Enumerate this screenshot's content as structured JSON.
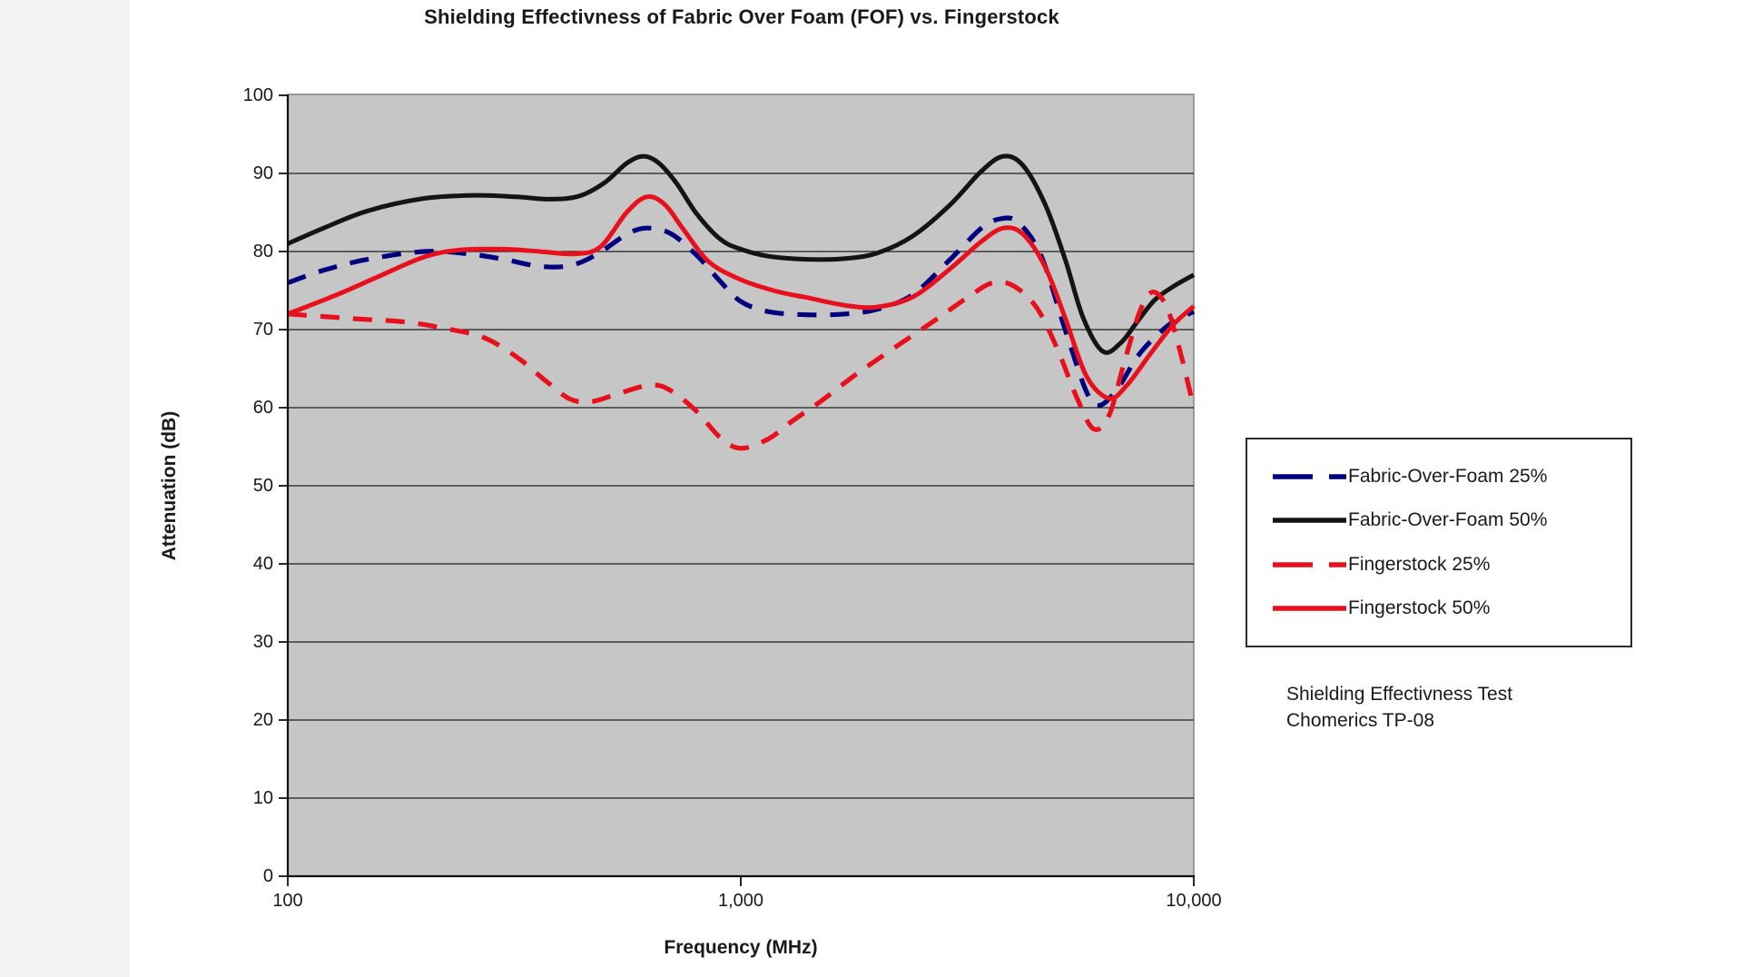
{
  "page": {
    "background": "#ffffff",
    "gutter_color": "#f3f3f3"
  },
  "chart_title": "Shielding Effectivness of Fabric Over Foam (FOF) vs. Fingerstock",
  "note": {
    "line1": "Shielding Effectivness Test",
    "line2": "Chomerics TP-08"
  },
  "chart_data": {
    "type": "line",
    "title": "Shielding Effectivness of Fabric Over Foam (FOF) vs. Fingerstock",
    "xlabel": "Frequency (MHz)",
    "ylabel": "Attenuation (dB)",
    "x_scale": "log",
    "xlim": [
      100,
      10000
    ],
    "ylim": [
      0,
      100
    ],
    "grid": "horizontal-only",
    "plot_background": "#c6c6c6",
    "plot_border_color": "#8a8a8a",
    "grid_color": "#1f1f1f",
    "axis_color": "#111111",
    "legend_position": "right",
    "x_ticks": [
      {
        "value": 100,
        "label": "100"
      },
      {
        "value": 1000,
        "label": "1,000"
      },
      {
        "value": 10000,
        "label": "10,000"
      }
    ],
    "y_ticks": [
      {
        "value": 0,
        "label": "0"
      },
      {
        "value": 10,
        "label": "10"
      },
      {
        "value": 20,
        "label": "20"
      },
      {
        "value": 30,
        "label": "30"
      },
      {
        "value": 40,
        "label": "40"
      },
      {
        "value": 50,
        "label": "50"
      },
      {
        "value": 60,
        "label": "60"
      },
      {
        "value": 70,
        "label": "70"
      },
      {
        "value": 80,
        "label": "80"
      },
      {
        "value": 90,
        "label": "90"
      },
      {
        "value": 100,
        "label": "100"
      }
    ],
    "series": [
      {
        "name": "Fabric-Over-Foam 25%",
        "color": "#00007e",
        "style": "dashed",
        "points": [
          [
            100,
            76
          ],
          [
            120,
            77.6
          ],
          [
            150,
            79
          ],
          [
            200,
            80
          ],
          [
            250,
            79.7
          ],
          [
            300,
            79
          ],
          [
            360,
            78.1
          ],
          [
            420,
            78.2
          ],
          [
            480,
            79.6
          ],
          [
            560,
            82.2
          ],
          [
            620,
            83
          ],
          [
            700,
            82.3
          ],
          [
            800,
            79.5
          ],
          [
            900,
            76.2
          ],
          [
            1000,
            73.6
          ],
          [
            1150,
            72.3
          ],
          [
            1400,
            71.9
          ],
          [
            1700,
            72
          ],
          [
            2000,
            72.6
          ],
          [
            2400,
            74.5
          ],
          [
            2900,
            79
          ],
          [
            3400,
            83
          ],
          [
            3750,
            84.2
          ],
          [
            4100,
            83.7
          ],
          [
            4600,
            79.5
          ],
          [
            5200,
            70
          ],
          [
            5800,
            62
          ],
          [
            6200,
            60.3
          ],
          [
            6800,
            62.5
          ],
          [
            7500,
            66.5
          ],
          [
            8200,
            69
          ],
          [
            9000,
            71
          ],
          [
            10000,
            72.3
          ]
        ]
      },
      {
        "name": "Fabric-Over-Foam 50%",
        "color": "#141414",
        "style": "solid",
        "points": [
          [
            100,
            81
          ],
          [
            120,
            83
          ],
          [
            150,
            85.2
          ],
          [
            200,
            86.8
          ],
          [
            260,
            87.2
          ],
          [
            320,
            87
          ],
          [
            380,
            86.7
          ],
          [
            440,
            87.1
          ],
          [
            500,
            88.8
          ],
          [
            560,
            91.3
          ],
          [
            610,
            92.2
          ],
          [
            660,
            91.3
          ],
          [
            720,
            88.8
          ],
          [
            800,
            84.8
          ],
          [
            900,
            81.6
          ],
          [
            1000,
            80.3
          ],
          [
            1150,
            79.4
          ],
          [
            1400,
            79
          ],
          [
            1700,
            79.1
          ],
          [
            2000,
            79.8
          ],
          [
            2400,
            82
          ],
          [
            2900,
            86
          ],
          [
            3400,
            90.3
          ],
          [
            3800,
            92.2
          ],
          [
            4200,
            91
          ],
          [
            4700,
            86
          ],
          [
            5200,
            79
          ],
          [
            5700,
            71.5
          ],
          [
            6300,
            67.2
          ],
          [
            6900,
            68.3
          ],
          [
            7500,
            71
          ],
          [
            8200,
            73.8
          ],
          [
            9000,
            75.5
          ],
          [
            10000,
            77
          ]
        ]
      },
      {
        "name": "Fingerstock 25%",
        "color": "#e8101c",
        "style": "dashed",
        "points": [
          [
            100,
            72
          ],
          [
            140,
            71.4
          ],
          [
            180,
            71
          ],
          [
            220,
            70.2
          ],
          [
            270,
            69
          ],
          [
            320,
            66.5
          ],
          [
            370,
            63.5
          ],
          [
            420,
            61.1
          ],
          [
            470,
            60.8
          ],
          [
            530,
            61.7
          ],
          [
            630,
            62.9
          ],
          [
            700,
            62.2
          ],
          [
            800,
            59.5
          ],
          [
            900,
            56.2
          ],
          [
            1000,
            54.8
          ],
          [
            1150,
            56
          ],
          [
            1300,
            58.3
          ],
          [
            1500,
            60.8
          ],
          [
            1800,
            64.3
          ],
          [
            2200,
            67.8
          ],
          [
            2700,
            71.3
          ],
          [
            3200,
            74.3
          ],
          [
            3600,
            76
          ],
          [
            4000,
            75.6
          ],
          [
            4500,
            72.8
          ],
          [
            5000,
            67.5
          ],
          [
            5500,
            61.5
          ],
          [
            6000,
            57.3
          ],
          [
            6500,
            59
          ],
          [
            7000,
            65.5
          ],
          [
            7600,
            72.3
          ],
          [
            8100,
            74.8
          ],
          [
            8700,
            73
          ],
          [
            9300,
            67.5
          ],
          [
            10000,
            60
          ]
        ]
      },
      {
        "name": "Fingerstock 50%",
        "color": "#e8101c",
        "style": "solid",
        "points": [
          [
            100,
            72
          ],
          [
            130,
            74.6
          ],
          [
            160,
            76.9
          ],
          [
            200,
            79.3
          ],
          [
            240,
            80.2
          ],
          [
            300,
            80.3
          ],
          [
            360,
            80
          ],
          [
            430,
            79.7
          ],
          [
            490,
            80.6
          ],
          [
            560,
            85
          ],
          [
            620,
            87
          ],
          [
            680,
            86
          ],
          [
            750,
            82.7
          ],
          [
            850,
            78.7
          ],
          [
            1000,
            76.4
          ],
          [
            1200,
            74.9
          ],
          [
            1400,
            74.1
          ],
          [
            1700,
            73.1
          ],
          [
            2000,
            72.9
          ],
          [
            2400,
            74.2
          ],
          [
            2900,
            77.8
          ],
          [
            3400,
            81.3
          ],
          [
            3800,
            83
          ],
          [
            4200,
            82.2
          ],
          [
            4700,
            78
          ],
          [
            5200,
            71.5
          ],
          [
            5800,
            64
          ],
          [
            6500,
            61.2
          ],
          [
            7100,
            62.8
          ],
          [
            8000,
            66.8
          ],
          [
            9000,
            70.6
          ],
          [
            10000,
            73
          ]
        ]
      }
    ]
  }
}
